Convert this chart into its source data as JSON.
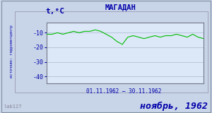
{
  "title": "МАГАДАН",
  "ylabel": "t,°C",
  "xlabel": "01.11.1962 – 30.11.1962",
  "footer_left": "lab127",
  "footer_right": "ноябрь, 1962",
  "source_label": "источник: гидрометцентр",
  "ylim": [
    -45,
    -3
  ],
  "yticks": [
    -40,
    -30,
    -20,
    -10
  ],
  "xlim": [
    1,
    30
  ],
  "line_color": "#00bb00",
  "bg_color": "#c8d4e8",
  "plot_bg_color": "#dce8f8",
  "grid_color": "#aab8cc",
  "title_color": "#0000aa",
  "ylabel_color": "#0000aa",
  "tick_label_color": "#0000aa",
  "xlabel_color": "#0000aa",
  "source_color": "#0000aa",
  "footer_left_color": "#888898",
  "footer_right_color": "#0000aa",
  "temperatures": [
    -11,
    -11,
    -10,
    -11,
    -10,
    -9,
    -10,
    -9,
    -9,
    -8,
    -9,
    -11,
    -13,
    -16,
    -18,
    -13,
    -12,
    -13,
    -14,
    -13,
    -12,
    -13,
    -12,
    -12,
    -11,
    -12,
    -13,
    -11,
    -13,
    -14
  ]
}
